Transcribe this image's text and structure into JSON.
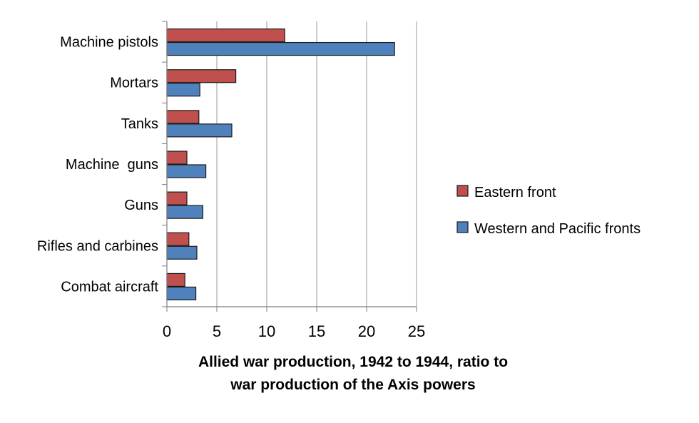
{
  "chart_data": {
    "type": "bar",
    "orientation": "horizontal",
    "categories": [
      "Machine pistols",
      "Mortars",
      "Tanks",
      "Machine  guns",
      "Guns",
      "Rifles and carbines",
      "Combat aircraft"
    ],
    "series": [
      {
        "name": "Eastern front",
        "values": [
          11.8,
          6.9,
          3.2,
          2.0,
          2.0,
          2.2,
          1.8
        ],
        "color": "#c0504d"
      },
      {
        "name": "Western and Pacific fronts",
        "values": [
          22.8,
          3.3,
          6.5,
          3.9,
          3.6,
          3.0,
          2.9
        ],
        "color": "#4f81bd"
      }
    ],
    "xlim": [
      0,
      25
    ],
    "xticks": [
      "0",
      "5",
      "10",
      "15",
      "20",
      "25"
    ],
    "xlabel_lines": [
      "Allied war production,  1942 to 1944,  ratio to",
      "war production of the Axis powers"
    ],
    "ylabel": "",
    "grid": "vertical",
    "legend_position": "right"
  }
}
